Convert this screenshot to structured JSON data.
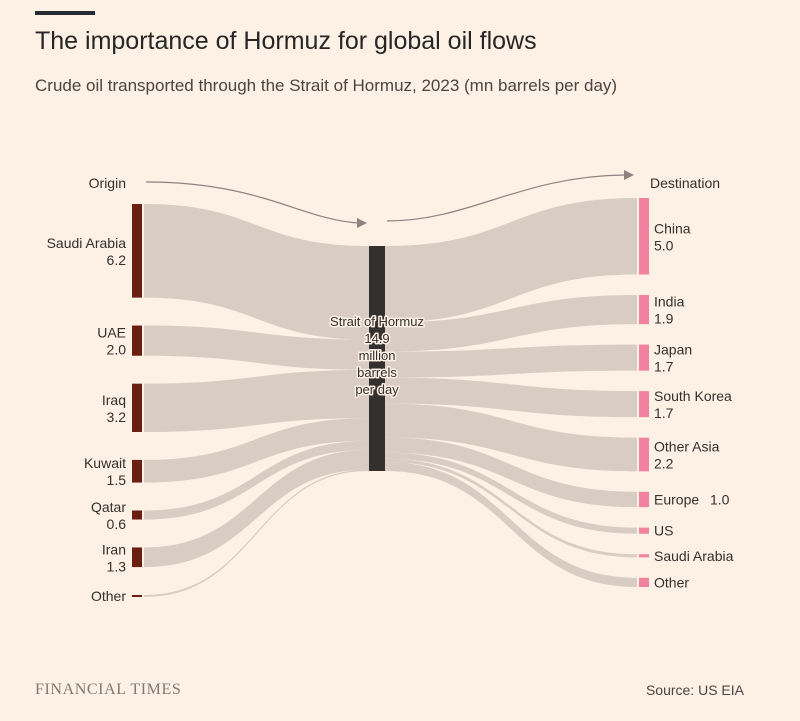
{
  "header": {
    "title": "The importance of Hormuz for global oil flows",
    "subtitle": "Crude oil transported through the Strait of Hormuz, 2023 (mn barrels per day)"
  },
  "footer": {
    "brand": "FINANCIAL TIMES",
    "source": "Source: US EIA"
  },
  "colors": {
    "background": "#fdf1e5",
    "origin_node": "#6b1f10",
    "hub_node": "#33302e",
    "destination_node": "#f0829f",
    "flow": "#d8ccc3",
    "arrow": "#8c8480"
  },
  "chart_data": {
    "type": "sankey",
    "units": "mn barrels per day",
    "origin_header": "Origin",
    "destination_header": "Destination",
    "hub": {
      "name": "Strait of Hormuz",
      "lines": [
        "Strait of Hormuz",
        "14.9",
        "million",
        "barrels",
        "per day"
      ],
      "value": 14.9
    },
    "origins": [
      {
        "name": "Saudi Arabia",
        "value": 6.2,
        "label": "6.2"
      },
      {
        "name": "UAE",
        "value": 2.0,
        "label": "2.0"
      },
      {
        "name": "Iraq",
        "value": 3.2,
        "label": "3.2"
      },
      {
        "name": "Kuwait",
        "value": 1.5,
        "label": "1.5"
      },
      {
        "name": "Qatar",
        "value": 0.6,
        "label": "0.6"
      },
      {
        "name": "Iran",
        "value": 1.3,
        "label": "1.3"
      },
      {
        "name": "Other",
        "value": 0.1,
        "label": ""
      }
    ],
    "destinations": [
      {
        "name": "China",
        "value": 5.0,
        "label": "5.0"
      },
      {
        "name": "India",
        "value": 1.9,
        "label": "1.9"
      },
      {
        "name": "Japan",
        "value": 1.7,
        "label": "1.7"
      },
      {
        "name": "South Korea",
        "value": 1.7,
        "label": "1.7"
      },
      {
        "name": "Other Asia",
        "value": 2.2,
        "label": "2.2"
      },
      {
        "name": "Europe",
        "value": 1.0,
        "label": "1.0",
        "inline": true
      },
      {
        "name": "US",
        "value": 0.4,
        "label": ""
      },
      {
        "name": "Saudi Arabia",
        "value": 0.2,
        "label": ""
      },
      {
        "name": "Other",
        "value": 0.6,
        "label": ""
      }
    ]
  }
}
